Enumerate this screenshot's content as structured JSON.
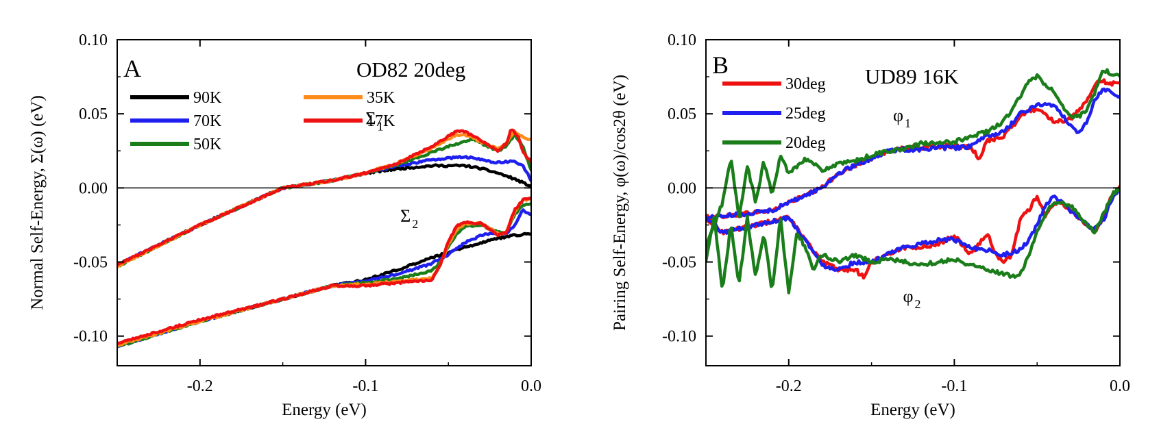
{
  "chart_data": [
    {
      "type": "line",
      "panel_letter": "A",
      "title": "OD82 20deg",
      "xlabel": "Energy (eV)",
      "ylabel": "Normal Self-Energy, Σ(ω) (eV)",
      "xlim": [
        -0.25,
        0.0
      ],
      "ylim": [
        -0.12,
        0.1
      ],
      "x_ticks": [
        -0.2,
        -0.1,
        0.0
      ],
      "x_tick_labels": [
        "-0.2",
        "-0.1",
        "0.0"
      ],
      "y_ticks": [
        0.1,
        0.05,
        0.0,
        -0.05,
        -0.1
      ],
      "y_tick_labels": [
        "0.10",
        "0.05",
        "0.00",
        "-0.05",
        "-0.10"
      ],
      "zero_line": 0.0,
      "legend_position": "top-left",
      "legend_columns": 2,
      "annotations": [
        {
          "symbol": "Σ",
          "sub": "1",
          "x": -0.1,
          "y": 0.043
        },
        {
          "symbol": "Σ",
          "sub": "2",
          "x": -0.079,
          "y": -0.023
        }
      ],
      "series": [
        {
          "name": "90K",
          "color": "#000000",
          "x": [
            -0.25,
            -0.2,
            -0.15,
            -0.12,
            -0.1,
            -0.08,
            -0.06,
            -0.05,
            -0.04,
            -0.03,
            -0.02,
            -0.01,
            0.0
          ],
          "y": [
            -0.052,
            -0.025,
            0.0,
            0.005,
            0.01,
            0.013,
            0.015,
            0.015,
            0.015,
            0.013,
            0.01,
            0.006,
            0.001
          ]
        },
        {
          "name": "70K",
          "color": "#1f1fef",
          "x": [
            -0.25,
            -0.2,
            -0.15,
            -0.12,
            -0.1,
            -0.08,
            -0.06,
            -0.05,
            -0.04,
            -0.03,
            -0.02,
            -0.01,
            -0.005,
            0.0
          ],
          "y": [
            -0.052,
            -0.025,
            0.0,
            0.005,
            0.01,
            0.015,
            0.019,
            0.02,
            0.021,
            0.019,
            0.017,
            0.018,
            0.015,
            0.005
          ]
        },
        {
          "name": "50K",
          "color": "#1a7d1a",
          "x": [
            -0.25,
            -0.2,
            -0.15,
            -0.12,
            -0.1,
            -0.08,
            -0.06,
            -0.05,
            -0.04,
            -0.035,
            -0.03,
            -0.02,
            -0.015,
            -0.01,
            -0.005,
            0.0
          ],
          "y": [
            -0.053,
            -0.025,
            0.0,
            0.005,
            0.01,
            0.016,
            0.024,
            0.028,
            0.031,
            0.033,
            0.03,
            0.025,
            0.028,
            0.036,
            0.028,
            0.012
          ]
        },
        {
          "name": "35K",
          "color": "#ff8c1a",
          "x": [
            -0.25,
            -0.2,
            -0.15,
            -0.12,
            -0.1,
            -0.08,
            -0.06,
            -0.05,
            -0.045,
            -0.04,
            -0.03,
            -0.02,
            -0.015,
            -0.01,
            -0.005,
            0.0
          ],
          "y": [
            -0.053,
            -0.025,
            0.0,
            0.005,
            0.01,
            0.017,
            0.027,
            0.033,
            0.036,
            0.036,
            0.031,
            0.026,
            0.03,
            0.038,
            0.034,
            0.032
          ]
        },
        {
          "name": "17K",
          "color": "#ee1111",
          "x": [
            -0.25,
            -0.2,
            -0.15,
            -0.12,
            -0.1,
            -0.08,
            -0.06,
            -0.05,
            -0.045,
            -0.04,
            -0.03,
            -0.02,
            -0.015,
            -0.012,
            -0.008,
            -0.005,
            0.0
          ],
          "y": [
            -0.052,
            -0.025,
            0.0,
            0.005,
            0.01,
            0.017,
            0.028,
            0.035,
            0.038,
            0.038,
            0.032,
            0.025,
            0.03,
            0.04,
            0.035,
            0.024,
            0.018
          ]
        },
        {
          "name": "90K",
          "color": "#000000",
          "legend": false,
          "x": [
            -0.25,
            -0.2,
            -0.15,
            -0.12,
            -0.1,
            -0.08,
            -0.06,
            -0.04,
            -0.02,
            -0.01,
            0.0
          ],
          "y": [
            -0.106,
            -0.09,
            -0.075,
            -0.066,
            -0.062,
            -0.055,
            -0.047,
            -0.04,
            -0.034,
            -0.032,
            -0.031
          ]
        },
        {
          "name": "70K",
          "color": "#1f1fef",
          "legend": false,
          "x": [
            -0.25,
            -0.2,
            -0.15,
            -0.12,
            -0.1,
            -0.08,
            -0.06,
            -0.05,
            -0.04,
            -0.03,
            -0.02,
            -0.015,
            -0.01,
            -0.005,
            0.0
          ],
          "y": [
            -0.107,
            -0.09,
            -0.075,
            -0.066,
            -0.063,
            -0.058,
            -0.051,
            -0.045,
            -0.037,
            -0.032,
            -0.03,
            -0.031,
            -0.025,
            -0.015,
            -0.018
          ]
        },
        {
          "name": "50K",
          "color": "#1a7d1a",
          "legend": false,
          "x": [
            -0.25,
            -0.2,
            -0.15,
            -0.12,
            -0.1,
            -0.08,
            -0.06,
            -0.055,
            -0.05,
            -0.045,
            -0.04,
            -0.03,
            -0.02,
            -0.015,
            -0.01,
            -0.005,
            0.0
          ],
          "y": [
            -0.107,
            -0.09,
            -0.075,
            -0.066,
            -0.064,
            -0.061,
            -0.056,
            -0.05,
            -0.04,
            -0.031,
            -0.026,
            -0.025,
            -0.03,
            -0.03,
            -0.018,
            -0.012,
            -0.01
          ]
        },
        {
          "name": "35K",
          "color": "#ff8c1a",
          "legend": false,
          "x": [
            -0.25,
            -0.2,
            -0.15,
            -0.12,
            -0.1,
            -0.08,
            -0.06,
            -0.055,
            -0.05,
            -0.045,
            -0.04,
            -0.03,
            -0.02,
            -0.015,
            -0.01,
            -0.005,
            0.0
          ],
          "y": [
            -0.106,
            -0.09,
            -0.075,
            -0.066,
            -0.065,
            -0.063,
            -0.061,
            -0.052,
            -0.038,
            -0.028,
            -0.024,
            -0.024,
            -0.031,
            -0.03,
            -0.016,
            -0.008,
            -0.008
          ]
        },
        {
          "name": "17K",
          "color": "#ee1111",
          "legend": false,
          "x": [
            -0.25,
            -0.2,
            -0.15,
            -0.12,
            -0.1,
            -0.08,
            -0.06,
            -0.055,
            -0.05,
            -0.045,
            -0.04,
            -0.03,
            -0.02,
            -0.015,
            -0.01,
            -0.005,
            0.0
          ],
          "y": [
            -0.105,
            -0.089,
            -0.075,
            -0.066,
            -0.066,
            -0.064,
            -0.062,
            -0.052,
            -0.036,
            -0.026,
            -0.023,
            -0.024,
            -0.032,
            -0.03,
            -0.015,
            -0.008,
            -0.007
          ]
        }
      ]
    },
    {
      "type": "line",
      "panel_letter": "B",
      "title": "UD89 16K",
      "xlabel": "Energy (eV)",
      "ylabel": "Pairing Self-Energy, φ(ω)/cos2θ (eV)",
      "xlim": [
        -0.25,
        0.0
      ],
      "ylim": [
        -0.12,
        0.1
      ],
      "x_ticks": [
        -0.2,
        -0.1,
        0.0
      ],
      "x_tick_labels": [
        "-0.2",
        "-0.1",
        "0.0"
      ],
      "y_ticks": [
        0.1,
        0.05,
        0.0,
        -0.05,
        -0.1
      ],
      "y_tick_labels": [
        "0.10",
        "0.05",
        "0.00",
        "-0.05",
        "-0.10"
      ],
      "zero_line": 0.0,
      "legend_position": "top-left",
      "legend_columns": 1,
      "annotations": [
        {
          "symbol": "φ",
          "sub": "1",
          "x": -0.137,
          "y": 0.045
        },
        {
          "symbol": "φ",
          "sub": "2",
          "x": -0.131,
          "y": -0.077
        }
      ],
      "series": [
        {
          "name": "30deg",
          "color": "#ee1111",
          "x": [
            -0.25,
            -0.23,
            -0.21,
            -0.2,
            -0.19,
            -0.18,
            -0.17,
            -0.16,
            -0.15,
            -0.14,
            -0.13,
            -0.12,
            -0.11,
            -0.1,
            -0.09,
            -0.085,
            -0.08,
            -0.07,
            -0.06,
            -0.055,
            -0.05,
            -0.045,
            -0.04,
            -0.03,
            -0.02,
            -0.015,
            -0.01,
            -0.005,
            0.0
          ],
          "y": [
            -0.02,
            -0.018,
            -0.015,
            -0.01,
            -0.005,
            0.0,
            0.01,
            0.015,
            0.02,
            0.025,
            0.027,
            0.027,
            0.028,
            0.028,
            0.027,
            0.02,
            0.032,
            0.035,
            0.048,
            0.052,
            0.053,
            0.05,
            0.045,
            0.046,
            0.058,
            0.07,
            0.072,
            0.07,
            0.072
          ]
        },
        {
          "name": "25deg",
          "color": "#1f1fef",
          "x": [
            -0.25,
            -0.23,
            -0.21,
            -0.2,
            -0.19,
            -0.18,
            -0.17,
            -0.16,
            -0.15,
            -0.14,
            -0.13,
            -0.12,
            -0.11,
            -0.1,
            -0.09,
            -0.08,
            -0.07,
            -0.06,
            -0.05,
            -0.045,
            -0.04,
            -0.035,
            -0.03,
            -0.025,
            -0.02,
            -0.015,
            -0.01,
            -0.005,
            0.0
          ],
          "y": [
            -0.02,
            -0.018,
            -0.015,
            -0.01,
            -0.005,
            0.0,
            0.01,
            0.015,
            0.02,
            0.025,
            0.026,
            0.026,
            0.027,
            0.027,
            0.028,
            0.035,
            0.038,
            0.05,
            0.056,
            0.057,
            0.055,
            0.05,
            0.042,
            0.037,
            0.045,
            0.06,
            0.067,
            0.065,
            0.062
          ]
        },
        {
          "name": "20deg",
          "color": "#1a7d1a",
          "x": [
            -0.25,
            -0.24,
            -0.235,
            -0.23,
            -0.225,
            -0.22,
            -0.215,
            -0.21,
            -0.205,
            -0.2,
            -0.195,
            -0.19,
            -0.185,
            -0.18,
            -0.17,
            -0.16,
            -0.15,
            -0.14,
            -0.13,
            -0.12,
            -0.11,
            -0.1,
            -0.09,
            -0.08,
            -0.07,
            -0.06,
            -0.055,
            -0.05,
            -0.045,
            -0.04,
            -0.035,
            -0.03,
            -0.025,
            -0.02,
            -0.015,
            -0.01,
            -0.005,
            0.0
          ],
          "y": [
            -0.04,
            -0.01,
            0.02,
            -0.02,
            0.015,
            -0.01,
            0.018,
            -0.005,
            0.022,
            0.01,
            0.015,
            0.02,
            0.016,
            0.012,
            0.016,
            0.018,
            0.022,
            0.025,
            0.026,
            0.03,
            0.03,
            0.031,
            0.035,
            0.038,
            0.045,
            0.062,
            0.072,
            0.075,
            0.07,
            0.065,
            0.055,
            0.048,
            0.048,
            0.052,
            0.065,
            0.08,
            0.077,
            0.075
          ]
        },
        {
          "name": "30deg",
          "color": "#ee1111",
          "legend": false,
          "x": [
            -0.25,
            -0.24,
            -0.22,
            -0.2,
            -0.19,
            -0.18,
            -0.17,
            -0.16,
            -0.155,
            -0.15,
            -0.14,
            -0.13,
            -0.12,
            -0.11,
            -0.1,
            -0.09,
            -0.08,
            -0.075,
            -0.07,
            -0.065,
            -0.06,
            -0.055,
            -0.05,
            -0.045,
            -0.04,
            -0.035,
            -0.03,
            -0.02,
            -0.015,
            -0.01,
            -0.005,
            0.0
          ],
          "y": [
            -0.02,
            -0.03,
            -0.025,
            -0.02,
            -0.035,
            -0.05,
            -0.055,
            -0.055,
            -0.06,
            -0.05,
            -0.045,
            -0.04,
            -0.04,
            -0.038,
            -0.032,
            -0.045,
            -0.03,
            -0.045,
            -0.05,
            -0.045,
            -0.02,
            -0.015,
            -0.005,
            -0.02,
            -0.01,
            -0.01,
            -0.015,
            -0.025,
            -0.03,
            -0.02,
            -0.005,
            0.0
          ]
        },
        {
          "name": "25deg",
          "color": "#1f1fef",
          "legend": false,
          "x": [
            -0.25,
            -0.24,
            -0.22,
            -0.2,
            -0.19,
            -0.18,
            -0.17,
            -0.16,
            -0.15,
            -0.14,
            -0.13,
            -0.12,
            -0.11,
            -0.1,
            -0.09,
            -0.08,
            -0.07,
            -0.06,
            -0.055,
            -0.05,
            -0.045,
            -0.04,
            -0.035,
            -0.03,
            -0.025,
            -0.02,
            -0.015,
            -0.01,
            -0.005,
            0.0
          ],
          "y": [
            -0.02,
            -0.03,
            -0.025,
            -0.02,
            -0.035,
            -0.052,
            -0.055,
            -0.05,
            -0.05,
            -0.045,
            -0.04,
            -0.038,
            -0.035,
            -0.035,
            -0.04,
            -0.042,
            -0.045,
            -0.042,
            -0.035,
            -0.025,
            -0.012,
            -0.006,
            -0.01,
            -0.015,
            -0.02,
            -0.025,
            -0.028,
            -0.022,
            -0.008,
            0.0
          ]
        },
        {
          "name": "20deg",
          "color": "#1a7d1a",
          "legend": false,
          "x": [
            -0.25,
            -0.245,
            -0.24,
            -0.235,
            -0.23,
            -0.225,
            -0.22,
            -0.215,
            -0.21,
            -0.205,
            -0.2,
            -0.195,
            -0.19,
            -0.185,
            -0.18,
            -0.17,
            -0.16,
            -0.15,
            -0.14,
            -0.13,
            -0.12,
            -0.11,
            -0.1,
            -0.09,
            -0.08,
            -0.07,
            -0.065,
            -0.06,
            -0.055,
            -0.05,
            -0.045,
            -0.04,
            -0.035,
            -0.03,
            -0.025,
            -0.02,
            -0.015,
            -0.01,
            -0.005,
            0.0
          ],
          "y": [
            -0.05,
            -0.02,
            -0.07,
            -0.025,
            -0.065,
            -0.02,
            -0.06,
            -0.03,
            -0.07,
            -0.02,
            -0.07,
            -0.03,
            -0.04,
            -0.055,
            -0.045,
            -0.05,
            -0.045,
            -0.05,
            -0.048,
            -0.05,
            -0.052,
            -0.05,
            -0.048,
            -0.052,
            -0.055,
            -0.058,
            -0.06,
            -0.058,
            -0.045,
            -0.03,
            -0.018,
            -0.01,
            -0.01,
            -0.012,
            -0.018,
            -0.025,
            -0.03,
            -0.018,
            -0.005,
            0.0
          ]
        }
      ]
    }
  ]
}
